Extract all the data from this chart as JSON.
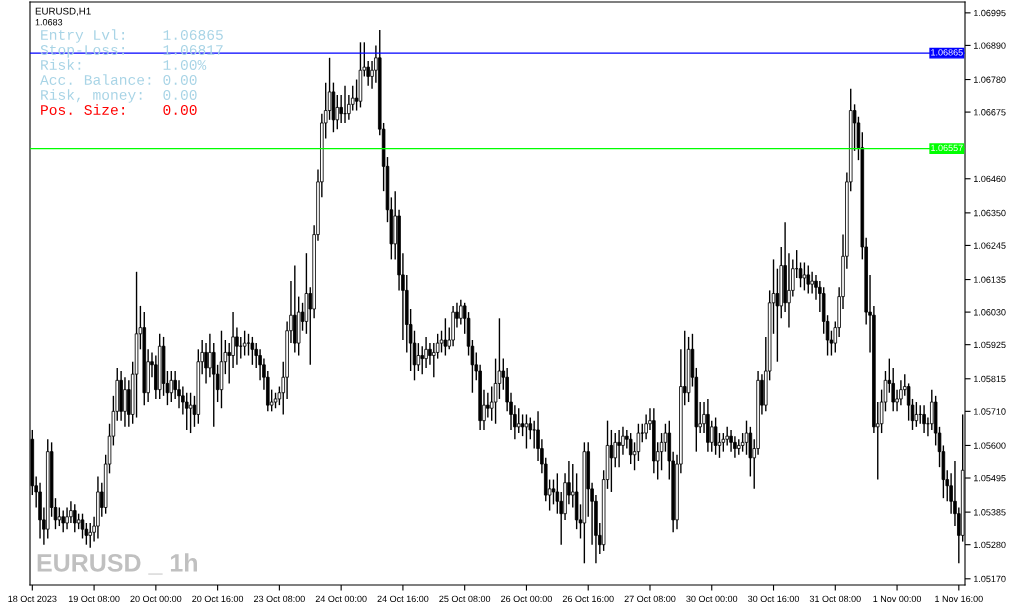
{
  "chart_data": {
    "type": "candlestick",
    "annotations": [
      "EURUSD,H1",
      "1.0683",
      "Entry Lvl:    1.06865",
      "Stop-Loss:    1.06817",
      "Risk:         1.00%",
      "Acc. Balance: 0.00",
      "Risk, money:  0.00",
      "Pos. Size:    0.00",
      "EURUSD _ 1h"
    ],
    "categories": [
      "18 Oct 2023",
      null,
      null,
      null,
      null,
      null,
      null,
      null,
      null,
      null,
      null,
      null,
      null,
      null,
      null,
      null,
      "19 Oct 08:00",
      null,
      null,
      null,
      null,
      null,
      null,
      null,
      null,
      null,
      null,
      null,
      null,
      null,
      null,
      null,
      "20 Oct 00:00",
      null,
      null,
      null,
      null,
      null,
      null,
      null,
      null,
      null,
      null,
      null,
      null,
      null,
      null,
      null,
      "20 Oct 16:00",
      null,
      null,
      null,
      null,
      null,
      null,
      null,
      null,
      null,
      null,
      null,
      null,
      null,
      null,
      null,
      "23 Oct 08:00",
      null,
      null,
      null,
      null,
      null,
      null,
      null,
      null,
      null,
      null,
      null,
      null,
      null,
      null,
      null,
      "24 Oct 00:00",
      null,
      null,
      null,
      null,
      null,
      null,
      null,
      null,
      null,
      null,
      null,
      null,
      null,
      null,
      null,
      "24 Oct 16:00",
      null,
      null,
      null,
      null,
      null,
      null,
      null,
      null,
      null,
      null,
      null,
      null,
      null,
      null,
      null,
      "25 Oct 08:00",
      null,
      null,
      null,
      null,
      null,
      null,
      null,
      null,
      null,
      null,
      null,
      null,
      null,
      null,
      null,
      "26 Oct 00:00",
      null,
      null,
      null,
      null,
      null,
      null,
      null,
      null,
      null,
      null,
      null,
      null,
      null,
      null,
      null,
      "26 Oct 16:00",
      null,
      null,
      null,
      null,
      null,
      null,
      null,
      null,
      null,
      null,
      null,
      null,
      null,
      null,
      null,
      "27 Oct 08:00",
      null,
      null,
      null,
      null,
      null,
      null,
      null,
      null,
      null,
      null,
      null,
      null,
      null,
      null,
      null,
      "30 Oct 00:00",
      null,
      null,
      null,
      null,
      null,
      null,
      null,
      null,
      null,
      null,
      null,
      null,
      null,
      null,
      null,
      "30 Oct 16:00",
      null,
      null,
      null,
      null,
      null,
      null,
      null,
      null,
      null,
      null,
      null,
      null,
      null,
      null,
      null,
      "31 Oct 08:00",
      null,
      null,
      null,
      null,
      null,
      null,
      null,
      null,
      null,
      null,
      null,
      null,
      null,
      null,
      null,
      "1 Nov 00:00",
      null,
      null,
      null,
      null,
      null,
      null,
      null,
      null,
      null,
      null,
      null,
      null,
      null,
      null,
      null,
      "1 Nov 16:00",
      null
    ],
    "ohlc": [
      [
        1.0562,
        1.0565,
        1.0544,
        1.0547
      ],
      [
        1.0547,
        1.055,
        1.054,
        1.0545
      ],
      [
        1.0545,
        1.0548,
        1.053,
        1.0536
      ],
      [
        1.0536,
        1.054,
        1.0528,
        1.0533
      ],
      [
        1.0533,
        1.0562,
        1.053,
        1.0558
      ],
      [
        1.0558,
        1.0561,
        1.0537,
        1.054
      ],
      [
        1.054,
        1.0543,
        1.0533,
        1.0536
      ],
      [
        1.0536,
        1.054,
        1.0534,
        1.0537
      ],
      [
        1.0537,
        1.0539,
        1.0532,
        1.0535
      ],
      [
        1.0535,
        1.054,
        1.0533,
        1.0537
      ],
      [
        1.0537,
        1.0542,
        1.0535,
        1.0539
      ],
      [
        1.0539,
        1.0541,
        1.0532,
        1.0535
      ],
      [
        1.0535,
        1.0538,
        1.0533,
        1.0536
      ],
      [
        1.0536,
        1.0538,
        1.053,
        1.0533
      ],
      [
        1.0533,
        1.0535,
        1.0528,
        1.0531
      ],
      [
        1.0531,
        1.0535,
        1.0527,
        1.0532
      ],
      [
        1.0532,
        1.0537,
        1.0529,
        1.0534
      ],
      [
        1.0534,
        1.055,
        1.053,
        1.0545
      ],
      [
        1.0545,
        1.0548,
        1.0537,
        1.054
      ],
      [
        1.054,
        1.0557,
        1.0538,
        1.0554
      ],
      [
        1.0554,
        1.0567,
        1.0551,
        1.0563
      ],
      [
        1.0563,
        1.0576,
        1.056,
        1.0571
      ],
      [
        1.0571,
        1.0585,
        1.0568,
        1.0581
      ],
      [
        1.0581,
        1.0584,
        1.0568,
        1.0571
      ],
      [
        1.0571,
        1.0582,
        1.0566,
        1.0578
      ],
      [
        1.0578,
        1.0581,
        1.0566,
        1.057
      ],
      [
        1.057,
        1.0587,
        1.0567,
        1.0583
      ],
      [
        1.0583,
        1.0616,
        1.0569,
        1.0596
      ],
      [
        1.0596,
        1.0605,
        1.0591,
        1.0598
      ],
      [
        1.0598,
        1.0603,
        1.0573,
        1.0577
      ],
      [
        1.0577,
        1.0591,
        1.0574,
        1.0587
      ],
      [
        1.0587,
        1.059,
        1.0582,
        1.0586
      ],
      [
        1.0586,
        1.0589,
        1.0575,
        1.0578
      ],
      [
        1.0578,
        1.0596,
        1.0575,
        1.0592
      ],
      [
        1.0592,
        1.0595,
        1.0576,
        1.058
      ],
      [
        1.058,
        1.0584,
        1.0573,
        1.0577
      ],
      [
        1.0577,
        1.0584,
        1.0574,
        1.0581
      ],
      [
        1.0581,
        1.0584,
        1.0575,
        1.0578
      ],
      [
        1.0578,
        1.0581,
        1.0572,
        1.0576
      ],
      [
        1.0576,
        1.0579,
        1.057,
        1.0574
      ],
      [
        1.0574,
        1.0577,
        1.0565,
        1.0572
      ],
      [
        1.0572,
        1.0577,
        1.0564,
        1.0573
      ],
      [
        1.0573,
        1.0576,
        1.0566,
        1.057
      ],
      [
        1.057,
        1.0591,
        1.0567,
        1.0587
      ],
      [
        1.0587,
        1.0594,
        1.0583,
        1.059
      ],
      [
        1.059,
        1.0593,
        1.058,
        1.0585
      ],
      [
        1.0585,
        1.0596,
        1.0582,
        1.059
      ],
      [
        1.059,
        1.0593,
        1.0566,
        1.0583
      ],
      [
        1.0583,
        1.0586,
        1.0574,
        1.0578
      ],
      [
        1.0578,
        1.0597,
        1.0572,
        1.0587
      ],
      [
        1.0587,
        1.0594,
        1.0583,
        1.059
      ],
      [
        1.059,
        1.0593,
        1.058,
        1.0589
      ],
      [
        1.0589,
        1.0603,
        1.0585,
        1.0595
      ],
      [
        1.0595,
        1.0598,
        1.0586,
        1.0592
      ],
      [
        1.0592,
        1.0595,
        1.0588,
        1.0592
      ],
      [
        1.0592,
        1.0597,
        1.0589,
        1.0593
      ],
      [
        1.0593,
        1.0596,
        1.0589,
        1.0593
      ],
      [
        1.0593,
        1.0595,
        1.0586,
        1.0591
      ],
      [
        1.0591,
        1.0593,
        1.0585,
        1.0589
      ],
      [
        1.0589,
        1.0591,
        1.0581,
        1.0586
      ],
      [
        1.0586,
        1.0588,
        1.0578,
        1.0582
      ],
      [
        1.0582,
        1.0584,
        1.0571,
        1.0573
      ],
      [
        1.0573,
        1.0578,
        1.0571,
        1.0574
      ],
      [
        1.0574,
        1.0577,
        1.0572,
        1.0575
      ],
      [
        1.0575,
        1.0579,
        1.0573,
        1.0577
      ],
      [
        1.0577,
        1.0587,
        1.057,
        1.0582
      ],
      [
        1.0582,
        1.06,
        1.0575,
        1.0597
      ],
      [
        1.0597,
        1.0613,
        1.0593,
        1.0602
      ],
      [
        1.0602,
        1.0618,
        1.059,
        1.0593
      ],
      [
        1.0593,
        1.0608,
        1.0589,
        1.0603
      ],
      [
        1.0603,
        1.0606,
        1.0597,
        1.06
      ],
      [
        1.06,
        1.0622,
        1.0596,
        1.0609
      ],
      [
        1.0609,
        1.0611,
        1.0586,
        1.0604
      ],
      [
        1.0604,
        1.0631,
        1.0601,
        1.0628
      ],
      [
        1.0628,
        1.0649,
        1.0626,
        1.0645
      ],
      [
        1.0645,
        1.0667,
        1.064,
        1.0664
      ],
      [
        1.0664,
        1.0677,
        1.0659,
        1.0668
      ],
      [
        1.0668,
        1.0685,
        1.0665,
        1.0674
      ],
      [
        1.0674,
        1.0677,
        1.0661,
        1.0665
      ],
      [
        1.0665,
        1.0673,
        1.0662,
        1.0669
      ],
      [
        1.0669,
        1.0673,
        1.0664,
        1.0667
      ],
      [
        1.0667,
        1.0676,
        1.0664,
        1.0667
      ],
      [
        1.0667,
        1.0673,
        1.0665,
        1.067
      ],
      [
        1.067,
        1.0676,
        1.0668,
        1.0672
      ],
      [
        1.0672,
        1.0678,
        1.0668,
        1.0671
      ],
      [
        1.0671,
        1.069,
        1.0669,
        1.0681
      ],
      [
        1.0681,
        1.069,
        1.0679,
        1.0682
      ],
      [
        1.0682,
        1.0684,
        1.0676,
        1.0679
      ],
      [
        1.0679,
        1.0684,
        1.0675,
        1.0681
      ],
      [
        1.0681,
        1.0689,
        1.0677,
        1.0685
      ],
      [
        1.0685,
        1.0694,
        1.066,
        1.0662
      ],
      [
        1.0662,
        1.0664,
        1.0642,
        1.065
      ],
      [
        1.065,
        1.0653,
        1.0632,
        1.0636
      ],
      [
        1.0636,
        1.064,
        1.062,
        1.0625
      ],
      [
        1.0625,
        1.0642,
        1.062,
        1.0634
      ],
      [
        1.0634,
        1.0636,
        1.061,
        1.0615
      ],
      [
        1.0615,
        1.0622,
        1.0594,
        1.061
      ],
      [
        1.061,
        1.0615,
        1.059,
        1.0599
      ],
      [
        1.0599,
        1.0604,
        1.0584,
        1.0593
      ],
      [
        1.0593,
        1.0597,
        1.0581,
        1.0586
      ],
      [
        1.0586,
        1.0593,
        1.0584,
        1.0589
      ],
      [
        1.0589,
        1.0592,
        1.0583,
        1.0588
      ],
      [
        1.0588,
        1.0595,
        1.0585,
        1.0591
      ],
      [
        1.0591,
        1.0593,
        1.0586,
        1.0589
      ],
      [
        1.0589,
        1.0593,
        1.0582,
        1.059
      ],
      [
        1.059,
        1.0596,
        1.0588,
        1.0593
      ],
      [
        1.0593,
        1.0597,
        1.059,
        1.0594
      ],
      [
        1.0594,
        1.0601,
        1.0589,
        1.0592
      ],
      [
        1.0592,
        1.0598,
        1.0591,
        1.0594
      ],
      [
        1.0594,
        1.0605,
        1.0592,
        1.0603
      ],
      [
        1.0603,
        1.0606,
        1.0598,
        1.0601
      ],
      [
        1.0601,
        1.0607,
        1.0599,
        1.0605
      ],
      [
        1.0605,
        1.0606,
        1.0596,
        1.0601
      ],
      [
        1.0601,
        1.0603,
        1.0589,
        1.0592
      ],
      [
        1.0592,
        1.0594,
        1.0577,
        1.0586
      ],
      [
        1.0586,
        1.059,
        1.0581,
        1.0584
      ],
      [
        1.0584,
        1.0586,
        1.0565,
        1.0568
      ],
      [
        1.0568,
        1.0578,
        1.0565,
        1.0573
      ],
      [
        1.0573,
        1.0577,
        1.0569,
        1.0572
      ],
      [
        1.0572,
        1.0579,
        1.0568,
        1.0574
      ],
      [
        1.0574,
        1.0588,
        1.0567,
        1.058
      ],
      [
        1.058,
        1.0601,
        1.0575,
        1.0584
      ],
      [
        1.0584,
        1.0588,
        1.0578,
        1.0582
      ],
      [
        1.0582,
        1.0585,
        1.0571,
        1.0574
      ],
      [
        1.0574,
        1.0577,
        1.0565,
        1.057
      ],
      [
        1.057,
        1.0573,
        1.0562,
        1.0566
      ],
      [
        1.0566,
        1.0572,
        1.0564,
        1.0567
      ],
      [
        1.0567,
        1.057,
        1.0563,
        1.0566
      ],
      [
        1.0566,
        1.057,
        1.0559,
        1.0567
      ],
      [
        1.0567,
        1.0569,
        1.0562,
        1.0565
      ],
      [
        1.0565,
        1.0568,
        1.0559,
        1.0565
      ],
      [
        1.0565,
        1.0571,
        1.0555,
        1.0559
      ],
      [
        1.0559,
        1.0562,
        1.0551,
        1.0554
      ],
      [
        1.0554,
        1.0556,
        1.0542,
        1.0544
      ],
      [
        1.0544,
        1.0549,
        1.0539,
        1.0546
      ],
      [
        1.0546,
        1.0549,
        1.0541,
        1.0545
      ],
      [
        1.0545,
        1.0551,
        1.0538,
        1.0542
      ],
      [
        1.0542,
        1.0545,
        1.0528,
        1.0538
      ],
      [
        1.0538,
        1.0551,
        1.0536,
        1.0548
      ],
      [
        1.0548,
        1.0555,
        1.0541,
        1.0544
      ],
      [
        1.0544,
        1.0554,
        1.054,
        1.0545
      ],
      [
        1.0545,
        1.0551,
        1.0533,
        1.0536
      ],
      [
        1.0536,
        1.0541,
        1.053,
        1.0535
      ],
      [
        1.0535,
        1.0561,
        1.0522,
        1.0558
      ],
      [
        1.0558,
        1.0561,
        1.0537,
        1.0546
      ],
      [
        1.0546,
        1.0548,
        1.0528,
        1.0542
      ],
      [
        1.0542,
        1.0544,
        1.0522,
        1.0531
      ],
      [
        1.0531,
        1.0535,
        1.0525,
        1.0528
      ],
      [
        1.0528,
        1.0552,
        1.0526,
        1.0549
      ],
      [
        1.0549,
        1.0568,
        1.0546,
        1.056
      ],
      [
        1.056,
        1.0565,
        1.0545,
        1.0556
      ],
      [
        1.0556,
        1.0564,
        1.0553,
        1.0561
      ],
      [
        1.0561,
        1.0565,
        1.0553,
        1.056
      ],
      [
        1.056,
        1.0566,
        1.0557,
        1.0563
      ],
      [
        1.0563,
        1.0565,
        1.0559,
        1.0562
      ],
      [
        1.0562,
        1.0564,
        1.0554,
        1.0557
      ],
      [
        1.0557,
        1.0561,
        1.0552,
        1.0558
      ],
      [
        1.0558,
        1.0567,
        1.0555,
        1.0564
      ],
      [
        1.0564,
        1.0567,
        1.0561,
        1.0564
      ],
      [
        1.0564,
        1.057,
        1.0562,
        1.0567
      ],
      [
        1.0567,
        1.0572,
        1.0565,
        1.0568
      ],
      [
        1.0568,
        1.0572,
        1.0551,
        1.0555
      ],
      [
        1.0555,
        1.0561,
        1.0549,
        1.0558
      ],
      [
        1.0558,
        1.0564,
        1.0552,
        1.0561
      ],
      [
        1.0561,
        1.0567,
        1.0558,
        1.0564
      ],
      [
        1.0564,
        1.0568,
        1.0549,
        1.0555
      ],
      [
        1.0555,
        1.0558,
        1.0532,
        1.0536
      ],
      [
        1.0536,
        1.0557,
        1.0533,
        1.0554
      ],
      [
        1.0554,
        1.0591,
        1.0551,
        1.0579
      ],
      [
        1.0579,
        1.0597,
        1.0573,
        1.0577
      ],
      [
        1.0577,
        1.0595,
        1.0574,
        1.0591
      ],
      [
        1.0591,
        1.0596,
        1.0579,
        1.0582
      ],
      [
        1.0582,
        1.0585,
        1.0558,
        1.0566
      ],
      [
        1.0566,
        1.0574,
        1.0564,
        1.0567
      ],
      [
        1.0567,
        1.0574,
        1.0564,
        1.057
      ],
      [
        1.057,
        1.0575,
        1.0558,
        1.0561
      ],
      [
        1.0561,
        1.0568,
        1.0558,
        1.0566
      ],
      [
        1.0566,
        1.0569,
        1.0557,
        1.056
      ],
      [
        1.056,
        1.0564,
        1.0556,
        1.0561
      ],
      [
        1.0561,
        1.0564,
        1.0558,
        1.0562
      ],
      [
        1.0562,
        1.0566,
        1.056,
        1.0563
      ],
      [
        1.0563,
        1.0565,
        1.0558,
        1.0561
      ],
      [
        1.0561,
        1.0563,
        1.0556,
        1.0559
      ],
      [
        1.0559,
        1.0562,
        1.0557,
        1.056
      ],
      [
        1.056,
        1.0564,
        1.0558,
        1.0561
      ],
      [
        1.0561,
        1.0568,
        1.0557,
        1.0564
      ],
      [
        1.0564,
        1.0566,
        1.055,
        1.0556
      ],
      [
        1.0556,
        1.0562,
        1.0546,
        1.0559
      ],
      [
        1.0559,
        1.0584,
        1.0557,
        1.0581
      ],
      [
        1.0581,
        1.0583,
        1.057,
        1.0573
      ],
      [
        1.0573,
        1.0595,
        1.0571,
        1.0584
      ],
      [
        1.0584,
        1.061,
        1.0581,
        1.0606
      ],
      [
        1.0606,
        1.062,
        1.0596,
        1.0609
      ],
      [
        1.0609,
        1.0617,
        1.0587,
        1.0605
      ],
      [
        1.0605,
        1.0624,
        1.0601,
        1.0618
      ],
      [
        1.0618,
        1.0632,
        1.0603,
        1.0606
      ],
      [
        1.0606,
        1.0622,
        1.0598,
        1.061
      ],
      [
        1.061,
        1.062,
        1.0608,
        1.0617
      ],
      [
        1.0617,
        1.0623,
        1.0614,
        1.0617
      ],
      [
        1.0617,
        1.0619,
        1.0611,
        1.0614
      ],
      [
        1.0614,
        1.0619,
        1.061,
        1.0615
      ],
      [
        1.0615,
        1.0618,
        1.0609,
        1.0612
      ],
      [
        1.0612,
        1.0616,
        1.0609,
        1.0613
      ],
      [
        1.0613,
        1.0615,
        1.0607,
        1.0611
      ],
      [
        1.0611,
        1.0613,
        1.0603,
        1.0609
      ],
      [
        1.0609,
        1.0611,
        1.0596,
        1.06
      ],
      [
        1.06,
        1.0602,
        1.0589,
        1.0594
      ],
      [
        1.0594,
        1.0597,
        1.0589,
        1.0593
      ],
      [
        1.0593,
        1.06,
        1.059,
        1.0598
      ],
      [
        1.0598,
        1.0611,
        1.0595,
        1.0608
      ],
      [
        1.0608,
        1.0628,
        1.0604,
        1.0621
      ],
      [
        1.0621,
        1.0648,
        1.0617,
        1.0645
      ],
      [
        1.0645,
        1.0675,
        1.0642,
        1.0668
      ],
      [
        1.0668,
        1.067,
        1.0655,
        1.0664
      ],
      [
        1.0664,
        1.0666,
        1.0652,
        1.0656
      ],
      [
        1.0656,
        1.0661,
        1.062,
        1.0624
      ],
      [
        1.0624,
        1.0627,
        1.0599,
        1.0603
      ],
      [
        1.0603,
        1.0615,
        1.059,
        1.0602
      ],
      [
        1.0602,
        1.0605,
        1.0564,
        1.0566
      ],
      [
        1.0566,
        1.0574,
        1.0549,
        1.0567
      ],
      [
        1.0567,
        1.0578,
        1.0564,
        1.0574
      ],
      [
        1.0574,
        1.0584,
        1.0571,
        1.0581
      ],
      [
        1.0581,
        1.0588,
        1.0577,
        1.058
      ],
      [
        1.058,
        1.0585,
        1.0571,
        1.0574
      ],
      [
        1.0574,
        1.0578,
        1.0571,
        1.0575
      ],
      [
        1.0575,
        1.0581,
        1.0573,
        1.0578
      ],
      [
        1.0578,
        1.0583,
        1.0576,
        1.0579
      ],
      [
        1.0579,
        1.058,
        1.0568,
        1.0573
      ],
      [
        1.0573,
        1.0575,
        1.0565,
        1.0568
      ],
      [
        1.0568,
        1.0574,
        1.0566,
        1.057
      ],
      [
        1.057,
        1.0573,
        1.0567,
        1.057
      ],
      [
        1.057,
        1.0573,
        1.0564,
        1.0567
      ],
      [
        1.0567,
        1.0569,
        1.0563,
        1.0567
      ],
      [
        1.0567,
        1.0578,
        1.0565,
        1.0574
      ],
      [
        1.0574,
        1.0576,
        1.056,
        1.0564
      ],
      [
        1.0564,
        1.0566,
        1.0553,
        1.0558
      ],
      [
        1.0558,
        1.056,
        1.0543,
        1.0549
      ],
      [
        1.0549,
        1.0552,
        1.0542,
        1.0547
      ],
      [
        1.0547,
        1.0551,
        1.0538,
        1.0542
      ],
      [
        1.0542,
        1.0555,
        1.0534,
        1.0538
      ],
      [
        1.0538,
        1.054,
        1.0522,
        1.0531
      ],
      [
        1.0531,
        1.057,
        1.0529,
        1.0552
      ]
    ],
    "ylim": [
      1.0515,
      1.0703
    ],
    "yticks": [
      1.06995,
      {
        "value": 1.0689,
        "label": "1.06890"
      },
      {
        "value": 1.0678,
        "label": "1.06780"
      },
      1.06675,
      {
        "value": 1.0646,
        "label": "1.06460"
      },
      {
        "value": 1.0635,
        "label": "1.06350"
      },
      1.06245,
      1.06135,
      {
        "value": 1.0603,
        "label": "1.06030"
      },
      1.05925,
      1.05815,
      {
        "value": 1.0571,
        "label": "1.05710"
      },
      {
        "value": 1.056,
        "label": "1.05600"
      },
      1.05495,
      1.05385,
      {
        "value": 1.0528,
        "label": "1.05280"
      },
      {
        "value": 1.0517,
        "label": "1.05170"
      }
    ],
    "ref_lines": [
      {
        "axis": "y",
        "value": 1.06865,
        "label": "1.06865",
        "color": "#0000ff"
      },
      {
        "axis": "y",
        "value": 1.06557,
        "label": "1.06557",
        "color": "#00ff00"
      }
    ],
    "grid": false,
    "legend": false
  }
}
